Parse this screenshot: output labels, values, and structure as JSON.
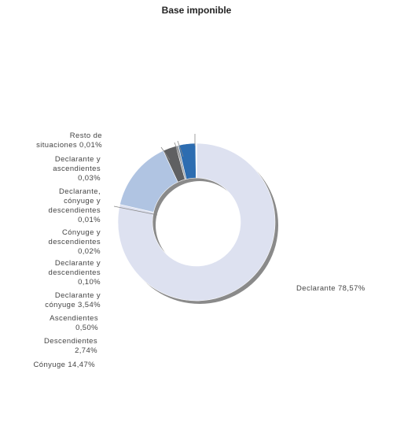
{
  "chart_data": {
    "type": "pie",
    "title": "Base imponible",
    "donut": true,
    "slices": [
      {
        "label": "Declarante",
        "value": 78.57,
        "value_text": "78,57%",
        "color": "#dde1f0"
      },
      {
        "label": "Cónyuge",
        "value": 14.47,
        "value_text": "14,47%",
        "color": "#b0c4e2"
      },
      {
        "label": "Descendientes",
        "value": 2.74,
        "value_text": "2,74%",
        "color": "#5f6062"
      },
      {
        "label": "Ascendientes",
        "value": 0.5,
        "value_text": "0,50%",
        "color": "#9aa0a6"
      },
      {
        "label": "Declarante y cónyuge",
        "value": 3.54,
        "value_text": "3,54%",
        "color": "#2d6db1"
      },
      {
        "label": "Declarante y descendientes",
        "value": 0.1,
        "value_text": "0,10%",
        "color": "#6b8fc7"
      },
      {
        "label": "Cónyuge y descendientes",
        "value": 0.02,
        "value_text": "0,02%",
        "color": "#8da6d0"
      },
      {
        "label": "Declarante, cónyuge y descendientes",
        "value": 0.01,
        "value_text": "0,01%",
        "color": "#7f7f7f"
      },
      {
        "label": "Declarante y ascendientes",
        "value": 0.03,
        "value_text": "0,03%",
        "color": "#4f81bd"
      },
      {
        "label": "Resto de situaciones",
        "value": 0.01,
        "value_text": "0,01%",
        "color": "#a5a5a5"
      }
    ]
  },
  "labels": {
    "declarante": "Declarante 78,57%",
    "resto": "Resto de\nsituaciones 0,01%",
    "decl_asc": "Declarante y\nascendientes\n0,03%",
    "decl_cony_desc": "Declarante,\ncónyuge y\ndescendientes\n0,01%",
    "cony_desc": "Cónyuge y\ndescendientes\n0,02%",
    "decl_desc": "Declarante y\ndescendientes\n0,10%",
    "decl_cony": "Declarante y\ncónyuge 3,54%",
    "ascendientes": "Ascendientes\n0,50%",
    "descendientes": "Descendientes\n2,74%",
    "conyuge": "Cónyuge 14,47%"
  }
}
